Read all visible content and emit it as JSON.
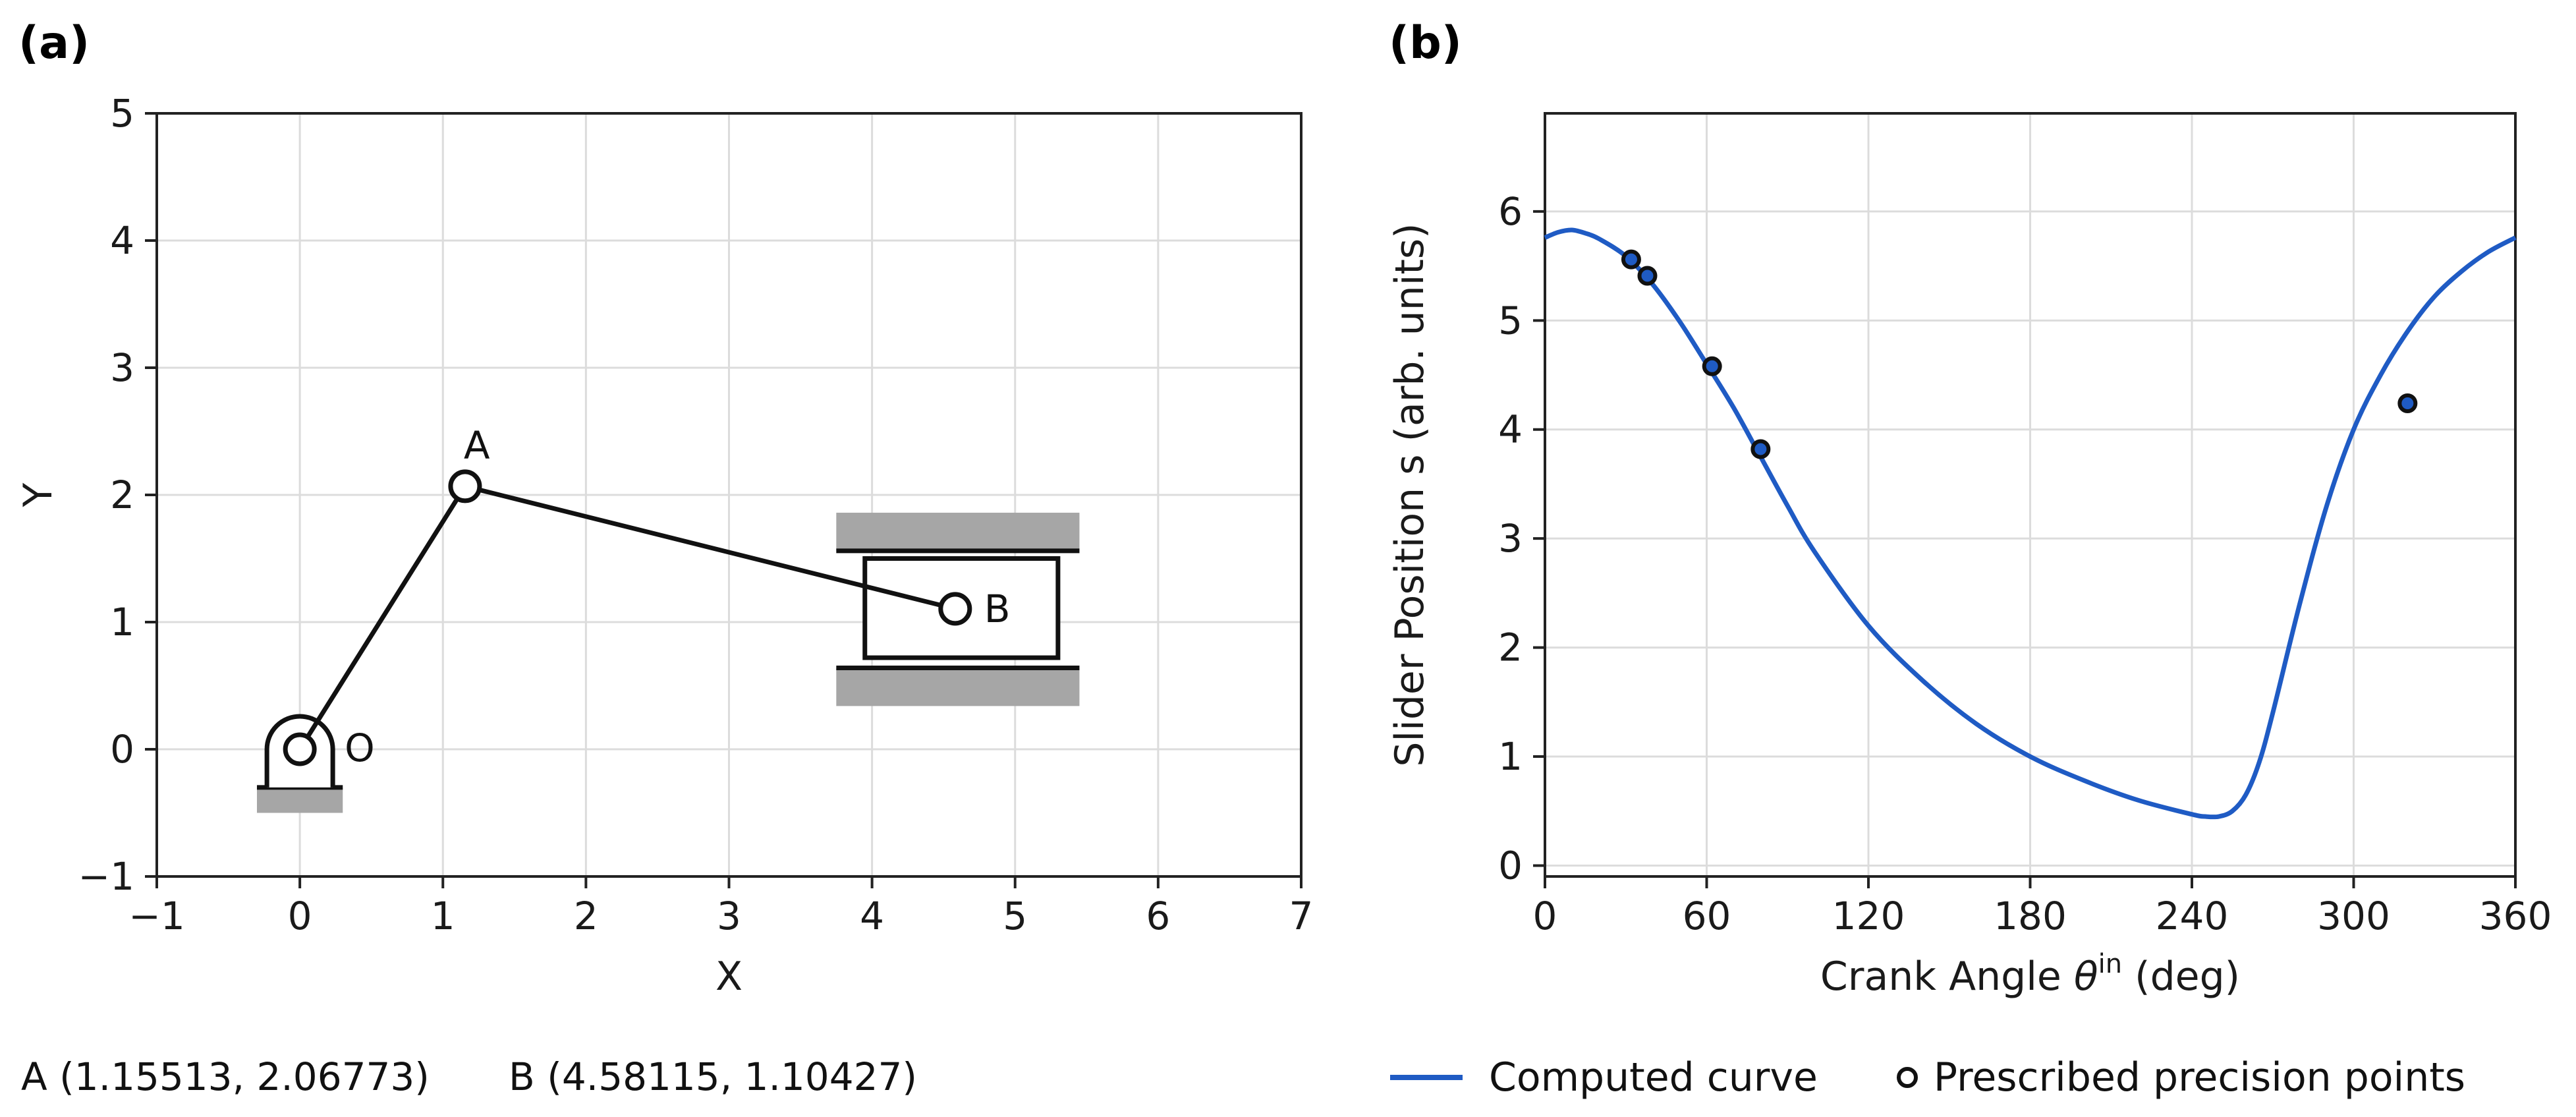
{
  "chart_data": [
    {
      "type": "diagram",
      "panel_label": "(a)",
      "xlabel": "X",
      "ylabel": "Y",
      "xlim": [
        -1,
        7
      ],
      "ylim": [
        -1,
        5
      ],
      "xticks": [
        -1,
        0,
        1,
        2,
        3,
        4,
        5,
        6,
        7
      ],
      "yticks": [
        -1,
        0,
        1,
        2,
        3,
        4,
        5
      ],
      "grid": true,
      "points": {
        "O": {
          "label": "O",
          "x": 0,
          "y": 0
        },
        "A": {
          "label": "A",
          "x": 1.15513,
          "y": 2.06773
        },
        "B": {
          "label": "B",
          "x": 4.58115,
          "y": 1.10427
        }
      },
      "links": [
        [
          "O",
          "A"
        ],
        [
          "A",
          "B"
        ]
      ],
      "slider_block": {
        "x_min": 3.95,
        "x_max": 5.3,
        "y_min": 0.72,
        "y_max": 1.5
      },
      "slider_rails": {
        "x_min": 3.75,
        "x_max": 5.45,
        "upper": [
          1.56,
          1.86
        ],
        "lower": [
          0.34,
          0.64
        ]
      },
      "ground": {
        "x_min": -0.3,
        "x_max": 0.3,
        "y_min": -0.5,
        "y_max": -0.3
      },
      "coordinates_text": [
        "A (1.15513, 2.06773)",
        "B (4.58115, 1.10427)"
      ]
    },
    {
      "type": "line",
      "panel_label": "(b)",
      "xlabel_main": "Crank Angle ",
      "xlabel_symbol": "θ",
      "xlabel_superscript": "in",
      "xlabel_unit": "  (deg)",
      "ylabel": "Slider Position s (arb. units)",
      "xlim": [
        0,
        360
      ],
      "ylim": [
        -0.1,
        6.9
      ],
      "xticks": [
        0,
        60,
        120,
        180,
        240,
        300,
        360
      ],
      "yticks": [
        0,
        1,
        2,
        3,
        4,
        5,
        6
      ],
      "grid": true,
      "series": [
        {
          "name": "Computed curve",
          "color": "#1f5bc4",
          "x": [
            0,
            5,
            10,
            15,
            20,
            30,
            40,
            50,
            60,
            70,
            80,
            90,
            100,
            120,
            140,
            160,
            180,
            200,
            220,
            240,
            245,
            250,
            255,
            260,
            265,
            270,
            280,
            290,
            300,
            310,
            320,
            330,
            340,
            350,
            360
          ],
          "y": [
            5.76,
            5.81,
            5.83,
            5.8,
            5.75,
            5.59,
            5.33,
            4.99,
            4.6,
            4.2,
            3.75,
            3.3,
            2.88,
            2.2,
            1.7,
            1.3,
            1.0,
            0.78,
            0.6,
            0.47,
            0.45,
            0.45,
            0.5,
            0.65,
            0.95,
            1.4,
            2.4,
            3.3,
            4.0,
            4.5,
            4.9,
            5.22,
            5.45,
            5.63,
            5.76
          ]
        },
        {
          "name": "Prescribed precision points",
          "color": "#111111",
          "x": [
            32,
            38,
            62,
            80,
            320
          ],
          "y": [
            5.56,
            5.41,
            4.58,
            3.82,
            4.24
          ]
        }
      ],
      "legend": [
        "Computed curve",
        "Prescribed precision points"
      ],
      "legend_position": "bottom"
    }
  ]
}
